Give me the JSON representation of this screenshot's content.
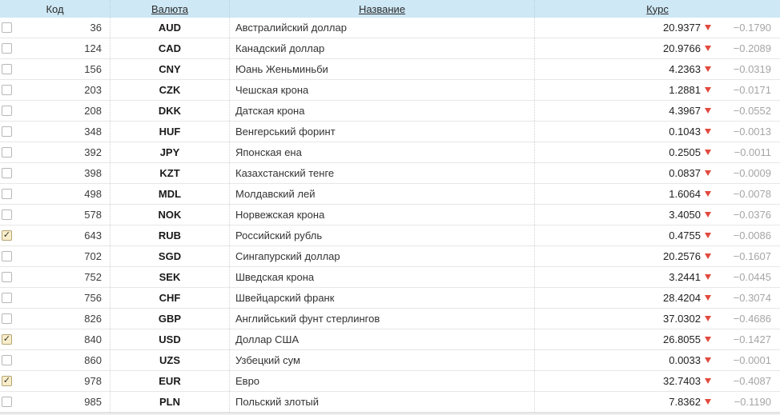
{
  "colors": {
    "header_bg": "#cee8f5",
    "row_border": "#e7e7e7",
    "triangle_red": "#e2493e",
    "change_gray": "#a5a5a5",
    "checked_checkbox_bg": "#f9edca"
  },
  "icons": {
    "checkmark": "✓",
    "down_triangle": "▼"
  },
  "table": {
    "headers": {
      "code": "Код",
      "currency": "Валюта",
      "name": "Название",
      "rate": "Курс"
    },
    "rows": [
      {
        "checked": false,
        "code": "36",
        "currency": "AUD",
        "name": "Австралийский доллар",
        "rate": "20.9377",
        "change": "−0.1790"
      },
      {
        "checked": false,
        "code": "124",
        "currency": "CAD",
        "name": "Канадский доллар",
        "rate": "20.9766",
        "change": "−0.2089"
      },
      {
        "checked": false,
        "code": "156",
        "currency": "CNY",
        "name": "Юань Женьминьби",
        "rate": "4.2363",
        "change": "−0.0319"
      },
      {
        "checked": false,
        "code": "203",
        "currency": "CZK",
        "name": "Чешская крона",
        "rate": "1.2881",
        "change": "−0.0171"
      },
      {
        "checked": false,
        "code": "208",
        "currency": "DKK",
        "name": "Датская крона",
        "rate": "4.3967",
        "change": "−0.0552"
      },
      {
        "checked": false,
        "code": "348",
        "currency": "HUF",
        "name": "Венгерський форинт",
        "rate": "0.1043",
        "change": "−0.0013"
      },
      {
        "checked": false,
        "code": "392",
        "currency": "JPY",
        "name": "Японская ена",
        "rate": "0.2505",
        "change": "−0.0011"
      },
      {
        "checked": false,
        "code": "398",
        "currency": "KZT",
        "name": "Казахстанский тенге",
        "rate": "0.0837",
        "change": "−0.0009"
      },
      {
        "checked": false,
        "code": "498",
        "currency": "MDL",
        "name": "Молдавский лей",
        "rate": "1.6064",
        "change": "−0.0078"
      },
      {
        "checked": false,
        "code": "578",
        "currency": "NOK",
        "name": "Норвежская крона",
        "rate": "3.4050",
        "change": "−0.0376"
      },
      {
        "checked": true,
        "code": "643",
        "currency": "RUB",
        "name": "Российский рубль",
        "rate": "0.4755",
        "change": "−0.0086"
      },
      {
        "checked": false,
        "code": "702",
        "currency": "SGD",
        "name": "Сингапурский доллар",
        "rate": "20.2576",
        "change": "−0.1607"
      },
      {
        "checked": false,
        "code": "752",
        "currency": "SEK",
        "name": "Шведская крона",
        "rate": "3.2441",
        "change": "−0.0445"
      },
      {
        "checked": false,
        "code": "756",
        "currency": "CHF",
        "name": "Швейцарский франк",
        "rate": "28.4204",
        "change": "−0.3074"
      },
      {
        "checked": false,
        "code": "826",
        "currency": "GBP",
        "name": "Английський фунт стерлингов",
        "rate": "37.0302",
        "change": "−0.4686"
      },
      {
        "checked": true,
        "code": "840",
        "currency": "USD",
        "name": "Доллар США",
        "rate": "26.8055",
        "change": "−0.1427"
      },
      {
        "checked": false,
        "code": "860",
        "currency": "UZS",
        "name": "Узбецкий сум",
        "rate": "0.0033",
        "change": "−0.0001"
      },
      {
        "checked": true,
        "code": "978",
        "currency": "EUR",
        "name": "Евро",
        "rate": "32.7403",
        "change": "−0.4087"
      },
      {
        "checked": false,
        "code": "985",
        "currency": "PLN",
        "name": "Польский злотый",
        "rate": "7.8362",
        "change": "−0.1190"
      }
    ]
  }
}
